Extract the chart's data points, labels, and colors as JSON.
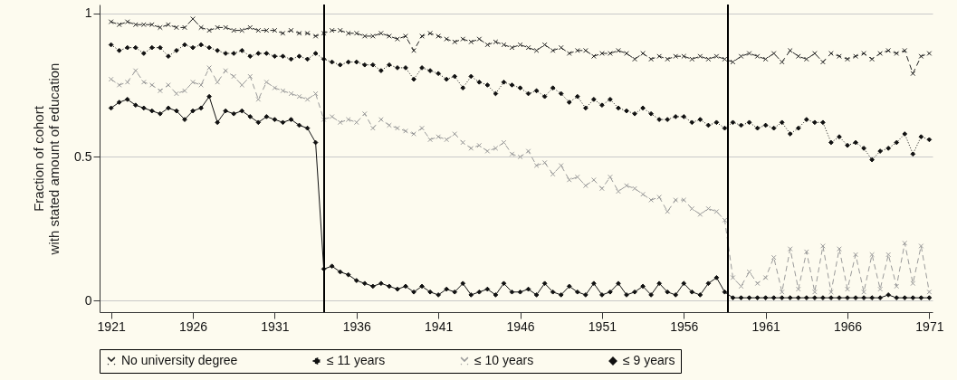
{
  "chart_data": {
    "type": "line",
    "ylabel": "Fraction of cohort\nwith stated amount of education",
    "x": [
      1921,
      1921.5,
      1922,
      1922.5,
      1923,
      1923.5,
      1924,
      1924.5,
      1925,
      1925.5,
      1926,
      1926.5,
      1927,
      1927.5,
      1928,
      1928.5,
      1929,
      1929.5,
      1930,
      1930.5,
      1931,
      1931.5,
      1932,
      1932.5,
      1933,
      1933.5,
      1934,
      1934.5,
      1935,
      1935.5,
      1936,
      1936.5,
      1937,
      1937.5,
      1938,
      1938.5,
      1939,
      1939.5,
      1940,
      1940.5,
      1941,
      1941.5,
      1942,
      1942.5,
      1943,
      1943.5,
      1944,
      1944.5,
      1945,
      1945.5,
      1946,
      1946.5,
      1947,
      1947.5,
      1948,
      1948.5,
      1949,
      1949.5,
      1950,
      1950.5,
      1951,
      1951.5,
      1952,
      1952.5,
      1953,
      1953.5,
      1954,
      1954.5,
      1955,
      1955.5,
      1956,
      1956.5,
      1957,
      1957.5,
      1958,
      1958.5,
      1959,
      1959.5,
      1960,
      1960.5,
      1961,
      1961.5,
      1962,
      1962.5,
      1963,
      1963.5,
      1964,
      1964.5,
      1965,
      1965.5,
      1966,
      1966.5,
      1967,
      1967.5,
      1968,
      1968.5,
      1969,
      1969.5,
      1970,
      1970.5,
      1971
    ],
    "series": [
      {
        "name": "No university degree",
        "color": "#222222",
        "line_style": "dashed",
        "marker": "cross",
        "values": [
          0.97,
          0.96,
          0.97,
          0.96,
          0.96,
          0.96,
          0.95,
          0.96,
          0.95,
          0.95,
          0.98,
          0.95,
          0.94,
          0.95,
          0.95,
          0.94,
          0.94,
          0.95,
          0.94,
          0.94,
          0.94,
          0.93,
          0.94,
          0.93,
          0.93,
          0.92,
          0.93,
          0.94,
          0.94,
          0.93,
          0.93,
          0.92,
          0.92,
          0.93,
          0.92,
          0.91,
          0.92,
          0.87,
          0.92,
          0.93,
          0.92,
          0.91,
          0.9,
          0.91,
          0.9,
          0.91,
          0.89,
          0.9,
          0.89,
          0.88,
          0.89,
          0.88,
          0.87,
          0.89,
          0.87,
          0.88,
          0.86,
          0.87,
          0.87,
          0.85,
          0.86,
          0.86,
          0.87,
          0.86,
          0.84,
          0.86,
          0.84,
          0.85,
          0.84,
          0.85,
          0.85,
          0.84,
          0.85,
          0.84,
          0.85,
          0.84,
          0.83,
          0.85,
          0.86,
          0.85,
          0.84,
          0.86,
          0.83,
          0.87,
          0.85,
          0.84,
          0.86,
          0.83,
          0.86,
          0.85,
          0.84,
          0.85,
          0.86,
          0.84,
          0.86,
          0.87,
          0.86,
          0.87,
          0.79,
          0.85,
          0.86
        ]
      },
      {
        "name": "≤ 11 years",
        "color": "#111111",
        "line_style": "dotted",
        "marker": "diamond",
        "values": [
          0.89,
          0.87,
          0.88,
          0.88,
          0.86,
          0.88,
          0.88,
          0.85,
          0.87,
          0.89,
          0.88,
          0.89,
          0.88,
          0.87,
          0.86,
          0.86,
          0.87,
          0.85,
          0.86,
          0.86,
          0.85,
          0.85,
          0.84,
          0.85,
          0.84,
          0.86,
          0.84,
          0.83,
          0.82,
          0.83,
          0.83,
          0.82,
          0.82,
          0.8,
          0.82,
          0.81,
          0.81,
          0.77,
          0.81,
          0.8,
          0.79,
          0.77,
          0.78,
          0.74,
          0.78,
          0.76,
          0.75,
          0.72,
          0.76,
          0.75,
          0.74,
          0.72,
          0.73,
          0.71,
          0.74,
          0.72,
          0.69,
          0.71,
          0.67,
          0.7,
          0.68,
          0.7,
          0.67,
          0.66,
          0.65,
          0.67,
          0.65,
          0.63,
          0.63,
          0.64,
          0.64,
          0.62,
          0.63,
          0.61,
          0.62,
          0.6,
          0.62,
          0.61,
          0.62,
          0.6,
          0.61,
          0.6,
          0.62,
          0.58,
          0.6,
          0.63,
          0.62,
          0.62,
          0.55,
          0.57,
          0.54,
          0.55,
          0.53,
          0.49,
          0.52,
          0.53,
          0.55,
          0.58,
          0.51,
          0.57,
          0.56
        ]
      },
      {
        "name": "≤ 10 years",
        "color": "#9a9a9a",
        "line_style": "dashed",
        "marker": "cross",
        "values": [
          0.77,
          0.75,
          0.76,
          0.8,
          0.76,
          0.75,
          0.73,
          0.75,
          0.72,
          0.73,
          0.76,
          0.75,
          0.81,
          0.76,
          0.8,
          0.78,
          0.75,
          0.78,
          0.7,
          0.76,
          0.74,
          0.73,
          0.72,
          0.71,
          0.7,
          0.72,
          0.63,
          0.64,
          0.62,
          0.63,
          0.62,
          0.65,
          0.6,
          0.63,
          0.61,
          0.6,
          0.59,
          0.58,
          0.6,
          0.56,
          0.57,
          0.56,
          0.58,
          0.55,
          0.53,
          0.54,
          0.52,
          0.53,
          0.55,
          0.51,
          0.5,
          0.52,
          0.47,
          0.48,
          0.44,
          0.47,
          0.42,
          0.43,
          0.4,
          0.42,
          0.39,
          0.43,
          0.38,
          0.4,
          0.39,
          0.37,
          0.35,
          0.36,
          0.31,
          0.35,
          0.35,
          0.32,
          0.3,
          0.32,
          0.31,
          0.28,
          0.08,
          0.05,
          0.1,
          0.06,
          0.08,
          0.15,
          0.03,
          0.18,
          0.04,
          0.17,
          0.03,
          0.19,
          0.03,
          0.18,
          0.04,
          0.16,
          0.03,
          0.16,
          0.04,
          0.16,
          0.05,
          0.2,
          0.06,
          0.19,
          0.03
        ]
      },
      {
        "name": "≤ 9 years",
        "color": "#111111",
        "line_style": "solid",
        "marker": "diamond",
        "values": [
          0.67,
          0.69,
          0.7,
          0.68,
          0.67,
          0.66,
          0.65,
          0.67,
          0.66,
          0.63,
          0.66,
          0.67,
          0.71,
          0.62,
          0.66,
          0.65,
          0.66,
          0.64,
          0.62,
          0.64,
          0.63,
          0.62,
          0.63,
          0.61,
          0.6,
          0.55,
          0.11,
          0.12,
          0.1,
          0.09,
          0.07,
          0.06,
          0.05,
          0.06,
          0.05,
          0.04,
          0.05,
          0.03,
          0.05,
          0.03,
          0.02,
          0.04,
          0.03,
          0.06,
          0.02,
          0.03,
          0.04,
          0.02,
          0.06,
          0.03,
          0.03,
          0.04,
          0.02,
          0.06,
          0.03,
          0.02,
          0.05,
          0.03,
          0.02,
          0.06,
          0.02,
          0.03,
          0.06,
          0.02,
          0.03,
          0.05,
          0.02,
          0.06,
          0.03,
          0.02,
          0.06,
          0.03,
          0.02,
          0.06,
          0.08,
          0.03,
          0.01,
          0.01,
          0.01,
          0.01,
          0.01,
          0.01,
          0.01,
          0.01,
          0.01,
          0.01,
          0.01,
          0.01,
          0.01,
          0.01,
          0.01,
          0.01,
          0.01,
          0.01,
          0.01,
          0.02,
          0.01,
          0.01,
          0.01,
          0.01,
          0.01
        ]
      }
    ],
    "xlim": [
      1920.3,
      1971.2
    ],
    "xticks": [
      1921,
      1926,
      1931,
      1936,
      1941,
      1946,
      1951,
      1956,
      1961,
      1966,
      1971
    ],
    "ylim": [
      -0.04,
      1.03
    ],
    "yticks": [
      0,
      0.5,
      1
    ],
    "grid": "y",
    "legend": "bottom",
    "ref_lines": [
      {
        "axis": "x",
        "value": 1934,
        "color": "#000000"
      },
      {
        "axis": "x",
        "value": 1958.7,
        "color": "#000000"
      }
    ]
  }
}
